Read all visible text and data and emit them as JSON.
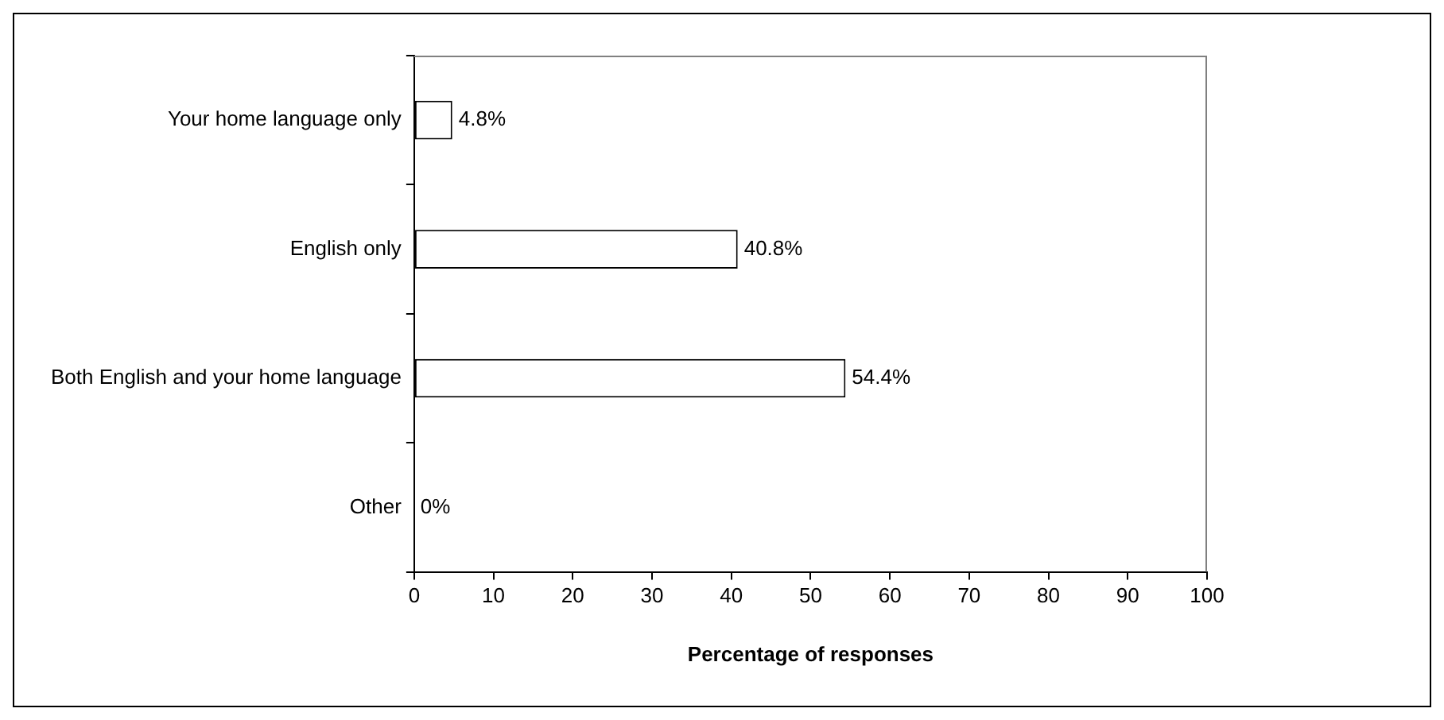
{
  "chart_data": {
    "type": "bar",
    "orientation": "horizontal",
    "xlabel": "Percentage of responses",
    "categories": [
      "Your home language only",
      "English only",
      "Both English and your home language",
      "Other"
    ],
    "values": [
      4.8,
      40.8,
      54.4,
      0
    ],
    "value_labels": [
      "4.8%",
      "40.8%",
      "54.4%",
      "0%"
    ],
    "color": "#ffffff",
    "xlim": [
      0,
      100
    ],
    "xticks": [
      0,
      10,
      20,
      30,
      40,
      50,
      60,
      70,
      80,
      90,
      100
    ],
    "grid": false,
    "legend": false
  }
}
